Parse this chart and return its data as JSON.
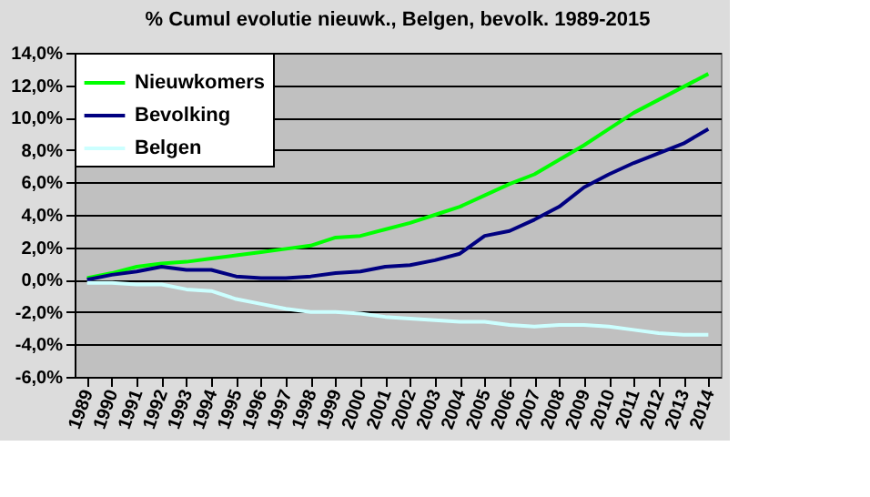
{
  "chart_data": {
    "type": "line",
    "title": "% Cumul evolutie nieuwk., Belgen, bevolk.  1989-2015",
    "categories": [
      "1989",
      "1990",
      "1991",
      "1992",
      "1993",
      "1994",
      "1995",
      "1996",
      "1997",
      "1998",
      "1999",
      "2000",
      "2001",
      "2002",
      "2003",
      "2004",
      "2005",
      "2006",
      "2007",
      "2008",
      "2009",
      "2010",
      "2011",
      "2012",
      "2013",
      "2014"
    ],
    "series": [
      {
        "name": "Nieuwkomers",
        "color": "#00ff00",
        "values": [
          0.1,
          0.4,
          0.8,
          1.0,
          1.1,
          1.3,
          1.5,
          1.7,
          1.9,
          2.1,
          2.6,
          2.7,
          3.1,
          3.5,
          4.0,
          4.5,
          5.2,
          5.9,
          6.5,
          7.4,
          8.3,
          9.3,
          10.3,
          11.1,
          11.9,
          12.7
        ]
      },
      {
        "name": "Bevolking",
        "color": "#000080",
        "values": [
          0.0,
          0.3,
          0.5,
          0.8,
          0.6,
          0.6,
          0.2,
          0.1,
          0.1,
          0.2,
          0.4,
          0.5,
          0.8,
          0.9,
          1.2,
          1.6,
          2.7,
          3.0,
          3.7,
          4.5,
          5.7,
          6.5,
          7.2,
          7.8,
          8.4,
          9.3
        ]
      },
      {
        "name": "Belgen",
        "color": "#ccffff",
        "values": [
          -0.2,
          -0.2,
          -0.3,
          -0.3,
          -0.6,
          -0.7,
          -1.2,
          -1.5,
          -1.8,
          -2.0,
          -2.0,
          -2.1,
          -2.3,
          -2.4,
          -2.5,
          -2.6,
          -2.6,
          -2.8,
          -2.9,
          -2.8,
          -2.8,
          -2.9,
          -3.1,
          -3.3,
          -3.4,
          -3.4
        ]
      }
    ],
    "ylim": [
      -6,
      14
    ],
    "yticks": [
      {
        "value": -6,
        "label": "-6,0%"
      },
      {
        "value": -4,
        "label": "-4,0%"
      },
      {
        "value": -2,
        "label": "-2,0%"
      },
      {
        "value": 0,
        "label": "0,0%"
      },
      {
        "value": 2,
        "label": "2,0%"
      },
      {
        "value": 4,
        "label": "4,0%"
      },
      {
        "value": 6,
        "label": "6,0%"
      },
      {
        "value": 8,
        "label": "8,0%"
      },
      {
        "value": 10,
        "label": "10,0%"
      },
      {
        "value": 12,
        "label": "12,0%"
      },
      {
        "value": 14,
        "label": "14,0%"
      }
    ],
    "grid": "y",
    "legend": "top left",
    "marker": "none",
    "line_style": "solid"
  }
}
